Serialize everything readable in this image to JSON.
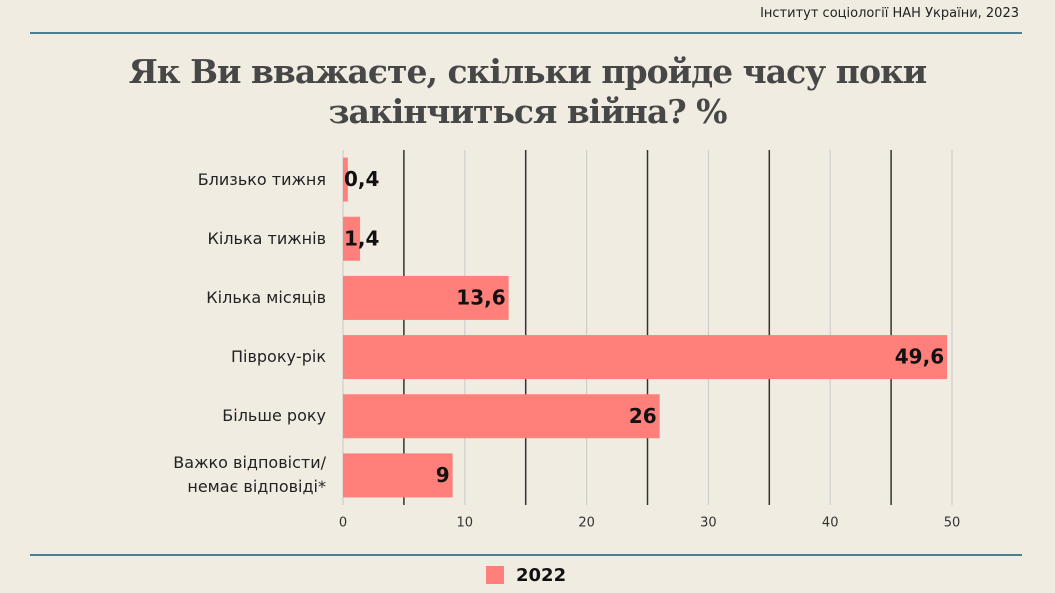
{
  "source": "Інститут соціології НАН України, 2023",
  "chart_data": {
    "type": "hbar",
    "title": "Як Ви вважаєте, скільки пройде часу поки\nзакінчиться війна? %",
    "categories": [
      "Близько тижня",
      "Кілька тижнів",
      "Кілька місяців",
      "Півроку-рік",
      "Більше року",
      "Важко відповісти/\nнемає відповіді*"
    ],
    "series": [
      {
        "name": "2022",
        "color": "#ff7f7a",
        "values": [
          0.4,
          1.4,
          13.6,
          49.6,
          26,
          9
        ],
        "value_labels": [
          "0,4",
          "1,4",
          "13,6",
          "49,6",
          "26",
          "9"
        ]
      }
    ],
    "xlim": [
      0,
      50
    ],
    "xticks": [
      0,
      10,
      20,
      30,
      40,
      50
    ],
    "minor_grid": [
      5,
      15,
      25,
      35,
      45
    ],
    "grid": true,
    "legend": "bottom"
  }
}
